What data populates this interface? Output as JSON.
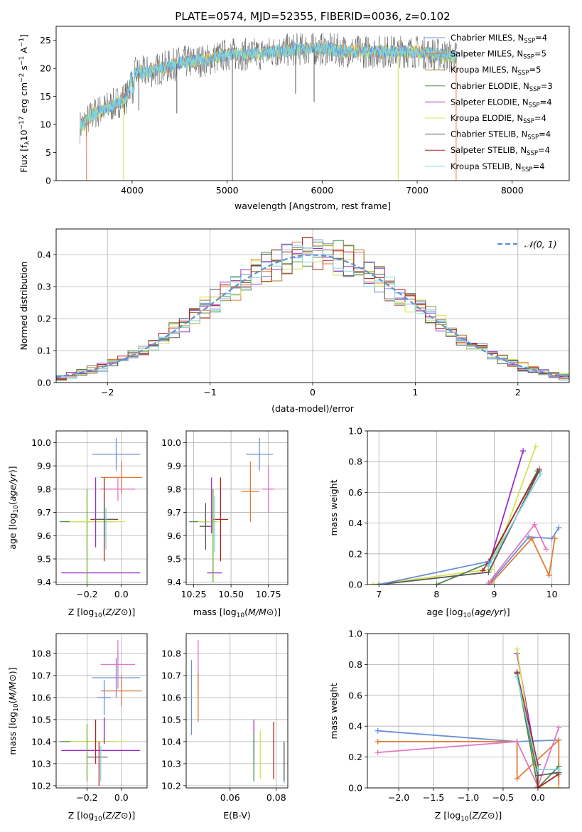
{
  "colors": {
    "Chabrier MILES": "#6a8fd8",
    "Salpeter MILES": "#e07b39",
    "Kroupa MILES": "#a87d2a",
    "Chabrier ELODIE": "#4f8a4f",
    "Salpeter ELODIE": "#9b30c8",
    "Kroupa ELODIE": "#d4e157",
    "Chabrier STELIB": "#5a5a5a",
    "Salpeter STELIB": "#b22222",
    "Kroupa STELIB": "#7ed6df",
    "pink": "#e377c2",
    "green": "#6aaa2a",
    "gaussian": "#5b8fd6"
  },
  "chart_data": [
    {
      "id": "spectrum",
      "type": "line",
      "title": "PLATE=0574, MJD=52355, FIBERID=0036, z=0.102",
      "xlabel": "wavelength [Angstrom, rest frame]",
      "ylabel": "Flux [f_λ10^-17 erg cm^-2 s^-1 A^-1]",
      "xlim": [
        3200,
        8600
      ],
      "ylim": [
        0,
        27.5
      ],
      "xticks": [
        "4000",
        "5000",
        "6000",
        "7000",
        "8000"
      ],
      "yticks": [
        "0",
        "5",
        "10",
        "15",
        "20",
        "25"
      ],
      "legend_position": "top-right",
      "legend": [
        {
          "series": "Chabrier MILES",
          "label": "Chabrier MILES, N",
          "nssp": "=4"
        },
        {
          "series": "Salpeter MILES",
          "label": "Salpeter MILES, N",
          "nssp": "=5"
        },
        {
          "series": "Kroupa MILES",
          "label": "Kroupa MILES, N",
          "nssp": "=5"
        },
        {
          "series": "Chabrier ELODIE",
          "label": "Chabrier ELODIE, N",
          "nssp": "=3"
        },
        {
          "series": "Salpeter ELODIE",
          "label": "Salpeter ELODIE, N",
          "nssp": "=4"
        },
        {
          "series": "Kroupa ELODIE",
          "label": "Kroupa ELODIE, N",
          "nssp": "=4"
        },
        {
          "series": "Chabrier STELIB",
          "label": "Chabrier STELIB, N",
          "nssp": "=4"
        },
        {
          "series": "Salpeter STELIB",
          "label": "Salpeter STELIB, N",
          "nssp": "=4"
        },
        {
          "series": "Kroupa STELIB",
          "label": "Kroupa STELIB, N",
          "nssp": "=4"
        }
      ],
      "continuum": [
        [
          3450,
          9.5
        ],
        [
          3600,
          12
        ],
        [
          3800,
          13.5
        ],
        [
          3950,
          15
        ],
        [
          4000,
          19
        ],
        [
          4200,
          19.5
        ],
        [
          4500,
          21
        ],
        [
          4800,
          21.5
        ],
        [
          5000,
          22.5
        ],
        [
          5300,
          22.5
        ],
        [
          5500,
          23
        ],
        [
          5800,
          23.5
        ],
        [
          6000,
          23.5
        ],
        [
          6300,
          23
        ],
        [
          6600,
          23
        ],
        [
          7000,
          23
        ],
        [
          7400,
          22
        ]
      ],
      "data_end": 7420,
      "spikes": [
        [
          3910,
          0
        ],
        [
          5055,
          0
        ],
        [
          6800,
          0
        ],
        [
          7410,
          0
        ],
        [
          5720,
          15.5
        ],
        [
          5915,
          14
        ],
        [
          4070,
          12.5
        ],
        [
          4470,
          12
        ]
      ]
    },
    {
      "id": "residuals",
      "type": "histogram",
      "xlabel": "(data-model)/error",
      "ylabel": "Normed distribution",
      "xlim": [
        -2.5,
        2.5
      ],
      "ylim": [
        0,
        0.48
      ],
      "xticks": [
        "−2",
        "−1",
        "0",
        "1",
        "2"
      ],
      "yticks": [
        "0.0",
        "0.1",
        "0.2",
        "0.3",
        "0.4"
      ],
      "legend_position": "top-right",
      "legend_label": "𝒩(0, 1)",
      "bin_width": 0.1
    },
    {
      "id": "age-z",
      "type": "errorbar",
      "xlabel": "Z [log10(Z/Z⊙)]",
      "ylabel": "age  [log10(age/yr)]",
      "xlim": [
        -0.38,
        0.15
      ],
      "ylim": [
        9.39,
        10.05
      ],
      "xticks": [
        "−0.2",
        "0.0"
      ],
      "yticks": [
        "9.4",
        "9.5",
        "9.6",
        "9.7",
        "9.8",
        "9.9",
        "10.0"
      ],
      "points": [
        {
          "color": "Chabrier MILES",
          "x": -0.03,
          "xerr": 0.14,
          "y": 9.95,
          "yerr": 0.07
        },
        {
          "color": "Salpeter MILES",
          "x": 0.0,
          "xerr": 0.12,
          "y": 9.85,
          "yerr": 0.07
        },
        {
          "color": "pink",
          "x": -0.02,
          "xerr": 0.1,
          "y": 9.8,
          "yerr": 0.05
        },
        {
          "color": "Salpeter ELODIE",
          "x": -0.12,
          "xerr": 0.23,
          "y": 9.44,
          "yerr": 0.0
        },
        {
          "color": "green",
          "x": -0.2,
          "xerr": 0.0,
          "y": 9.58,
          "yerr": 0.22
        },
        {
          "color": "Chabrier ELODIE",
          "x": -0.2,
          "xerr": 0.16,
          "y": 9.66,
          "yerr": 0.0
        },
        {
          "color": "Kroupa ELODIE",
          "x": -0.14,
          "xerr": 0.16,
          "y": 9.66,
          "yerr": 0.0
        },
        {
          "color": "Salpeter STELIB",
          "x": -0.1,
          "xerr": 0.08,
          "y": 9.67,
          "yerr": 0.18
        },
        {
          "color": "Chabrier STELIB",
          "x": -0.1,
          "xerr": 0.06,
          "y": 9.67,
          "yerr": 0.08
        },
        {
          "color": "Kroupa STELIB",
          "x": -0.09,
          "xerr": 0.0,
          "y": 9.63,
          "yerr": 0.09
        },
        {
          "color": "Salpeter ELODIE",
          "x": -0.15,
          "xerr": 0.0,
          "y": 9.7,
          "yerr": 0.15
        }
      ]
    },
    {
      "id": "age-mass",
      "type": "errorbar",
      "xlabel": "mass [log10(M/M⊙)]",
      "ylabel": "",
      "xlim": [
        10.2,
        10.88
      ],
      "ylim": [
        9.39,
        10.05
      ],
      "xticks": [
        "10.25",
        "10.50",
        "10.75"
      ],
      "yticks": [
        "9.4",
        "9.5",
        "9.6",
        "9.7",
        "9.8",
        "9.9",
        "10.0"
      ],
      "points": [
        {
          "color": "Chabrier MILES",
          "x": 10.69,
          "xerr": 0.09,
          "y": 9.95,
          "yerr": 0.07
        },
        {
          "color": "Salpeter MILES",
          "x": 10.63,
          "xerr": 0.06,
          "y": 9.79,
          "yerr": 0.13
        },
        {
          "color": "pink",
          "x": 10.75,
          "xerr": 0.04,
          "y": 9.8,
          "yerr": 0.1
        },
        {
          "color": "Salpeter ELODIE",
          "x": 10.39,
          "xerr": 0.05,
          "y": 9.44,
          "yerr": 0.0
        },
        {
          "color": "Chabrier ELODIE",
          "x": 10.3,
          "xerr": 0.08,
          "y": 9.66,
          "yerr": 0.0
        },
        {
          "color": "Kroupa ELODIE",
          "x": 10.35,
          "xerr": 0.07,
          "y": 9.66,
          "yerr": 0.0
        },
        {
          "color": "Salpeter STELIB",
          "x": 10.43,
          "xerr": 0.05,
          "y": 9.67,
          "yerr": 0.18
        },
        {
          "color": "Chabrier STELIB",
          "x": 10.33,
          "xerr": 0.04,
          "y": 9.64,
          "yerr": 0.1
        },
        {
          "color": "Kroupa STELIB",
          "x": 10.39,
          "xerr": 0.0,
          "y": 9.65,
          "yerr": 0.12
        },
        {
          "color": "Salpeter ELODIE",
          "x": 10.37,
          "xerr": 0.0,
          "y": 9.73,
          "yerr": 0.12
        },
        {
          "color": "green",
          "x": 10.38,
          "xerr": 0.0,
          "y": 9.6,
          "yerr": 0.2
        }
      ]
    },
    {
      "id": "weight-age",
      "type": "line",
      "xlabel": "age  [log10(age/yr)]",
      "ylabel": "mass weight",
      "xlim": [
        6.8,
        10.3
      ],
      "ylim": [
        0,
        1.0
      ],
      "xticks": [
        "7",
        "8",
        "9",
        "10"
      ],
      "yticks": [
        "0.0",
        "0.2",
        "0.4",
        "0.6",
        "0.8",
        "1.0"
      ],
      "series": [
        {
          "color": "Chabrier MILES",
          "points": [
            [
              8.9,
              0.0
            ],
            [
              9.6,
              0.31
            ],
            [
              10.0,
              0.3
            ],
            [
              10.12,
              0.37
            ]
          ]
        },
        {
          "color": "Salpeter MILES",
          "points": [
            [
              8.95,
              0.01
            ],
            [
              9.65,
              0.3
            ],
            [
              9.95,
              0.06
            ],
            [
              10.05,
              0.3
            ]
          ]
        },
        {
          "color": "pink",
          "points": [
            [
              8.9,
              0.01
            ],
            [
              9.7,
              0.39
            ],
            [
              9.9,
              0.23
            ]
          ]
        },
        {
          "color": "Salpeter ELODIE",
          "points": [
            [
              8.9,
              0.12
            ],
            [
              9.5,
              0.87
            ]
          ]
        },
        {
          "color": "Kroupa ELODIE",
          "points": [
            [
              6.9,
              0.0
            ],
            [
              8.95,
              0.1
            ],
            [
              9.72,
              0.9
            ]
          ]
        },
        {
          "color": "Chabrier ELODIE",
          "points": [
            [
              8.0,
              0.0
            ],
            [
              8.9,
              0.14
            ],
            [
              9.75,
              0.74
            ]
          ]
        },
        {
          "color": "Salpeter STELIB",
          "points": [
            [
              8.8,
              0.09
            ],
            [
              8.9,
              0.15
            ],
            [
              9.78,
              0.75
            ]
          ]
        },
        {
          "color": "Chabrier STELIB",
          "points": [
            [
              7.0,
              0.0
            ],
            [
              8.9,
              0.08
            ],
            [
              9.78,
              0.74
            ]
          ]
        },
        {
          "color": "Kroupa STELIB",
          "points": [
            [
              8.9,
              0.12
            ],
            [
              9.8,
              0.72
            ]
          ]
        },
        {
          "color": "Chabrier MILES",
          "points": [
            [
              7.0,
              0.0
            ],
            [
              8.9,
              0.15
            ]
          ]
        }
      ]
    },
    {
      "id": "mass-z",
      "type": "errorbar",
      "xlabel": "Z [log10(Z/Z⊙)]",
      "ylabel": "mass [log10(M/M⊙)]",
      "xlim": [
        -0.38,
        0.15
      ],
      "ylim": [
        10.19,
        10.89
      ],
      "xticks": [
        "−0.2",
        "0.0"
      ],
      "yticks": [
        "10.2",
        "10.3",
        "10.4",
        "10.5",
        "10.6",
        "10.7",
        "10.8"
      ],
      "points": [
        {
          "color": "Chabrier MILES",
          "x": -0.03,
          "xerr": 0.14,
          "y": 10.69,
          "yerr": 0.09
        },
        {
          "color": "Salpeter MILES",
          "x": 0.0,
          "xerr": 0.12,
          "y": 10.63,
          "yerr": 0.07
        },
        {
          "color": "pink",
          "x": -0.02,
          "xerr": 0.1,
          "y": 10.75,
          "yerr": 0.11
        },
        {
          "color": "Salpeter ELODIE",
          "x": -0.12,
          "xerr": 0.23,
          "y": 10.36,
          "yerr": 0.0
        },
        {
          "color": "Chabrier ELODIE",
          "x": -0.2,
          "xerr": 0.16,
          "y": 10.4,
          "yerr": 0.0
        },
        {
          "color": "Kroupa ELODIE",
          "x": -0.14,
          "xerr": 0.16,
          "y": 10.4,
          "yerr": 0.0
        },
        {
          "color": "green",
          "x": -0.2,
          "xerr": 0.0,
          "y": 10.35,
          "yerr": 0.13
        },
        {
          "color": "Salpeter STELIB",
          "x": -0.15,
          "xerr": 0.0,
          "y": 10.4,
          "yerr": 0.1
        },
        {
          "color": "Chabrier STELIB",
          "x": -0.14,
          "xerr": 0.06,
          "y": 10.33,
          "yerr": 0.0
        },
        {
          "color": "Kroupa STELIB",
          "x": -0.12,
          "xerr": 0.0,
          "y": 10.3,
          "yerr": 0.08
        },
        {
          "color": "Salpeter STELIB",
          "x": -0.13,
          "xerr": 0.0,
          "y": 10.3,
          "yerr": 0.1
        },
        {
          "color": "Chabrier MILES",
          "x": -0.1,
          "xerr": 0.04,
          "y": 10.6,
          "yerr": 0.08
        },
        {
          "color": "Chabrier STELIB",
          "x": -0.1,
          "xerr": 0.0,
          "y": 10.45,
          "yerr": 0.06
        },
        {
          "color": "Salpeter ELODIE",
          "x": -0.1,
          "xerr": 0.0,
          "y": 10.45,
          "yerr": 0.06
        }
      ]
    },
    {
      "id": "mass-ebv",
      "type": "errorbar",
      "xlabel": "E(B-V)",
      "ylabel": "",
      "xlim": [
        0.041,
        0.085
      ],
      "ylim": [
        10.19,
        10.89
      ],
      "xticks": [
        "0.06",
        "0.08"
      ],
      "yticks": [
        "10.2",
        "10.3",
        "10.4",
        "10.5",
        "10.6",
        "10.7",
        "10.8"
      ],
      "points": [
        {
          "color": "Chabrier MILES",
          "x": 0.0433,
          "xerr": 0.0,
          "y": 10.6,
          "yerr": 0.17
        },
        {
          "color": "pink",
          "x": 0.0462,
          "xerr": 0.0,
          "y": 10.74,
          "yerr": 0.12
        },
        {
          "color": "Salpeter MILES",
          "x": 0.0462,
          "xerr": 0.0,
          "y": 10.6,
          "yerr": 0.11
        },
        {
          "color": "Salpeter ELODIE",
          "x": 0.0703,
          "xerr": 0.0,
          "y": 10.41,
          "yerr": 0.09
        },
        {
          "color": "Chabrier ELODIE",
          "x": 0.0703,
          "xerr": 0.0,
          "y": 10.33,
          "yerr": 0.11
        },
        {
          "color": "Kroupa ELODIE",
          "x": 0.0731,
          "xerr": 0.0,
          "y": 10.34,
          "yerr": 0.11
        },
        {
          "color": "Salpeter STELIB",
          "x": 0.0789,
          "xerr": 0.0,
          "y": 10.36,
          "yerr": 0.13
        },
        {
          "color": "Kroupa STELIB",
          "x": 0.0834,
          "xerr": 0.0,
          "y": 10.3,
          "yerr": 0.09
        },
        {
          "color": "Chabrier STELIB",
          "x": 0.0834,
          "xerr": 0.0,
          "y": 10.31,
          "yerr": 0.09
        }
      ]
    },
    {
      "id": "weight-z",
      "type": "line",
      "xlabel": "Z [log10(Z/Z⊙)]",
      "ylabel": "mass weight",
      "xlim": [
        -2.45,
        0.45
      ],
      "ylim": [
        0,
        1.0
      ],
      "xticks": [
        "−2.0",
        "−1.5",
        "−1.0",
        "−0.5",
        "0.0"
      ],
      "yticks": [
        "0.0",
        "0.2",
        "0.4",
        "0.6",
        "0.8",
        "1.0"
      ],
      "series": [
        {
          "color": "Chabrier MILES",
          "points": [
            [
              -2.3,
              0.37
            ],
            [
              -0.3,
              0.3
            ],
            [
              0.3,
              0.31
            ]
          ]
        },
        {
          "color": "Salpeter MILES",
          "points": [
            [
              -2.3,
              0.3
            ],
            [
              -0.3,
              0.3
            ],
            [
              -0.3,
              0.06
            ],
            [
              0.3,
              0.31
            ],
            [
              0.3,
              0.0
            ]
          ]
        },
        {
          "color": "pink",
          "points": [
            [
              -2.3,
              0.23
            ],
            [
              -0.3,
              0.3
            ],
            [
              0.0,
              0.01
            ],
            [
              0.3,
              0.39
            ]
          ]
        },
        {
          "color": "Salpeter ELODIE",
          "points": [
            [
              -0.3,
              0.87
            ],
            [
              0.0,
              0.12
            ]
          ]
        },
        {
          "color": "Kroupa ELODIE",
          "points": [
            [
              -0.3,
              0.9
            ],
            [
              0.0,
              0.0
            ],
            [
              0.3,
              0.0
            ]
          ]
        },
        {
          "color": "Chabrier ELODIE",
          "points": [
            [
              -0.3,
              0.74
            ],
            [
              0.0,
              0.0
            ],
            [
              0.3,
              0.14
            ]
          ]
        },
        {
          "color": "Salpeter STELIB",
          "points": [
            [
              -0.3,
              0.75
            ],
            [
              0.0,
              0.15
            ],
            [
              0.0,
              0.0
            ],
            [
              0.3,
              0.09
            ]
          ]
        },
        {
          "color": "Chabrier STELIB",
          "points": [
            [
              -0.3,
              0.74
            ],
            [
              0.0,
              0.08
            ],
            [
              0.3,
              0.1
            ]
          ]
        },
        {
          "color": "Kroupa STELIB",
          "points": [
            [
              -0.3,
              0.72
            ],
            [
              0.0,
              0.12
            ],
            [
              0.3,
              0.12
            ]
          ]
        }
      ]
    }
  ]
}
